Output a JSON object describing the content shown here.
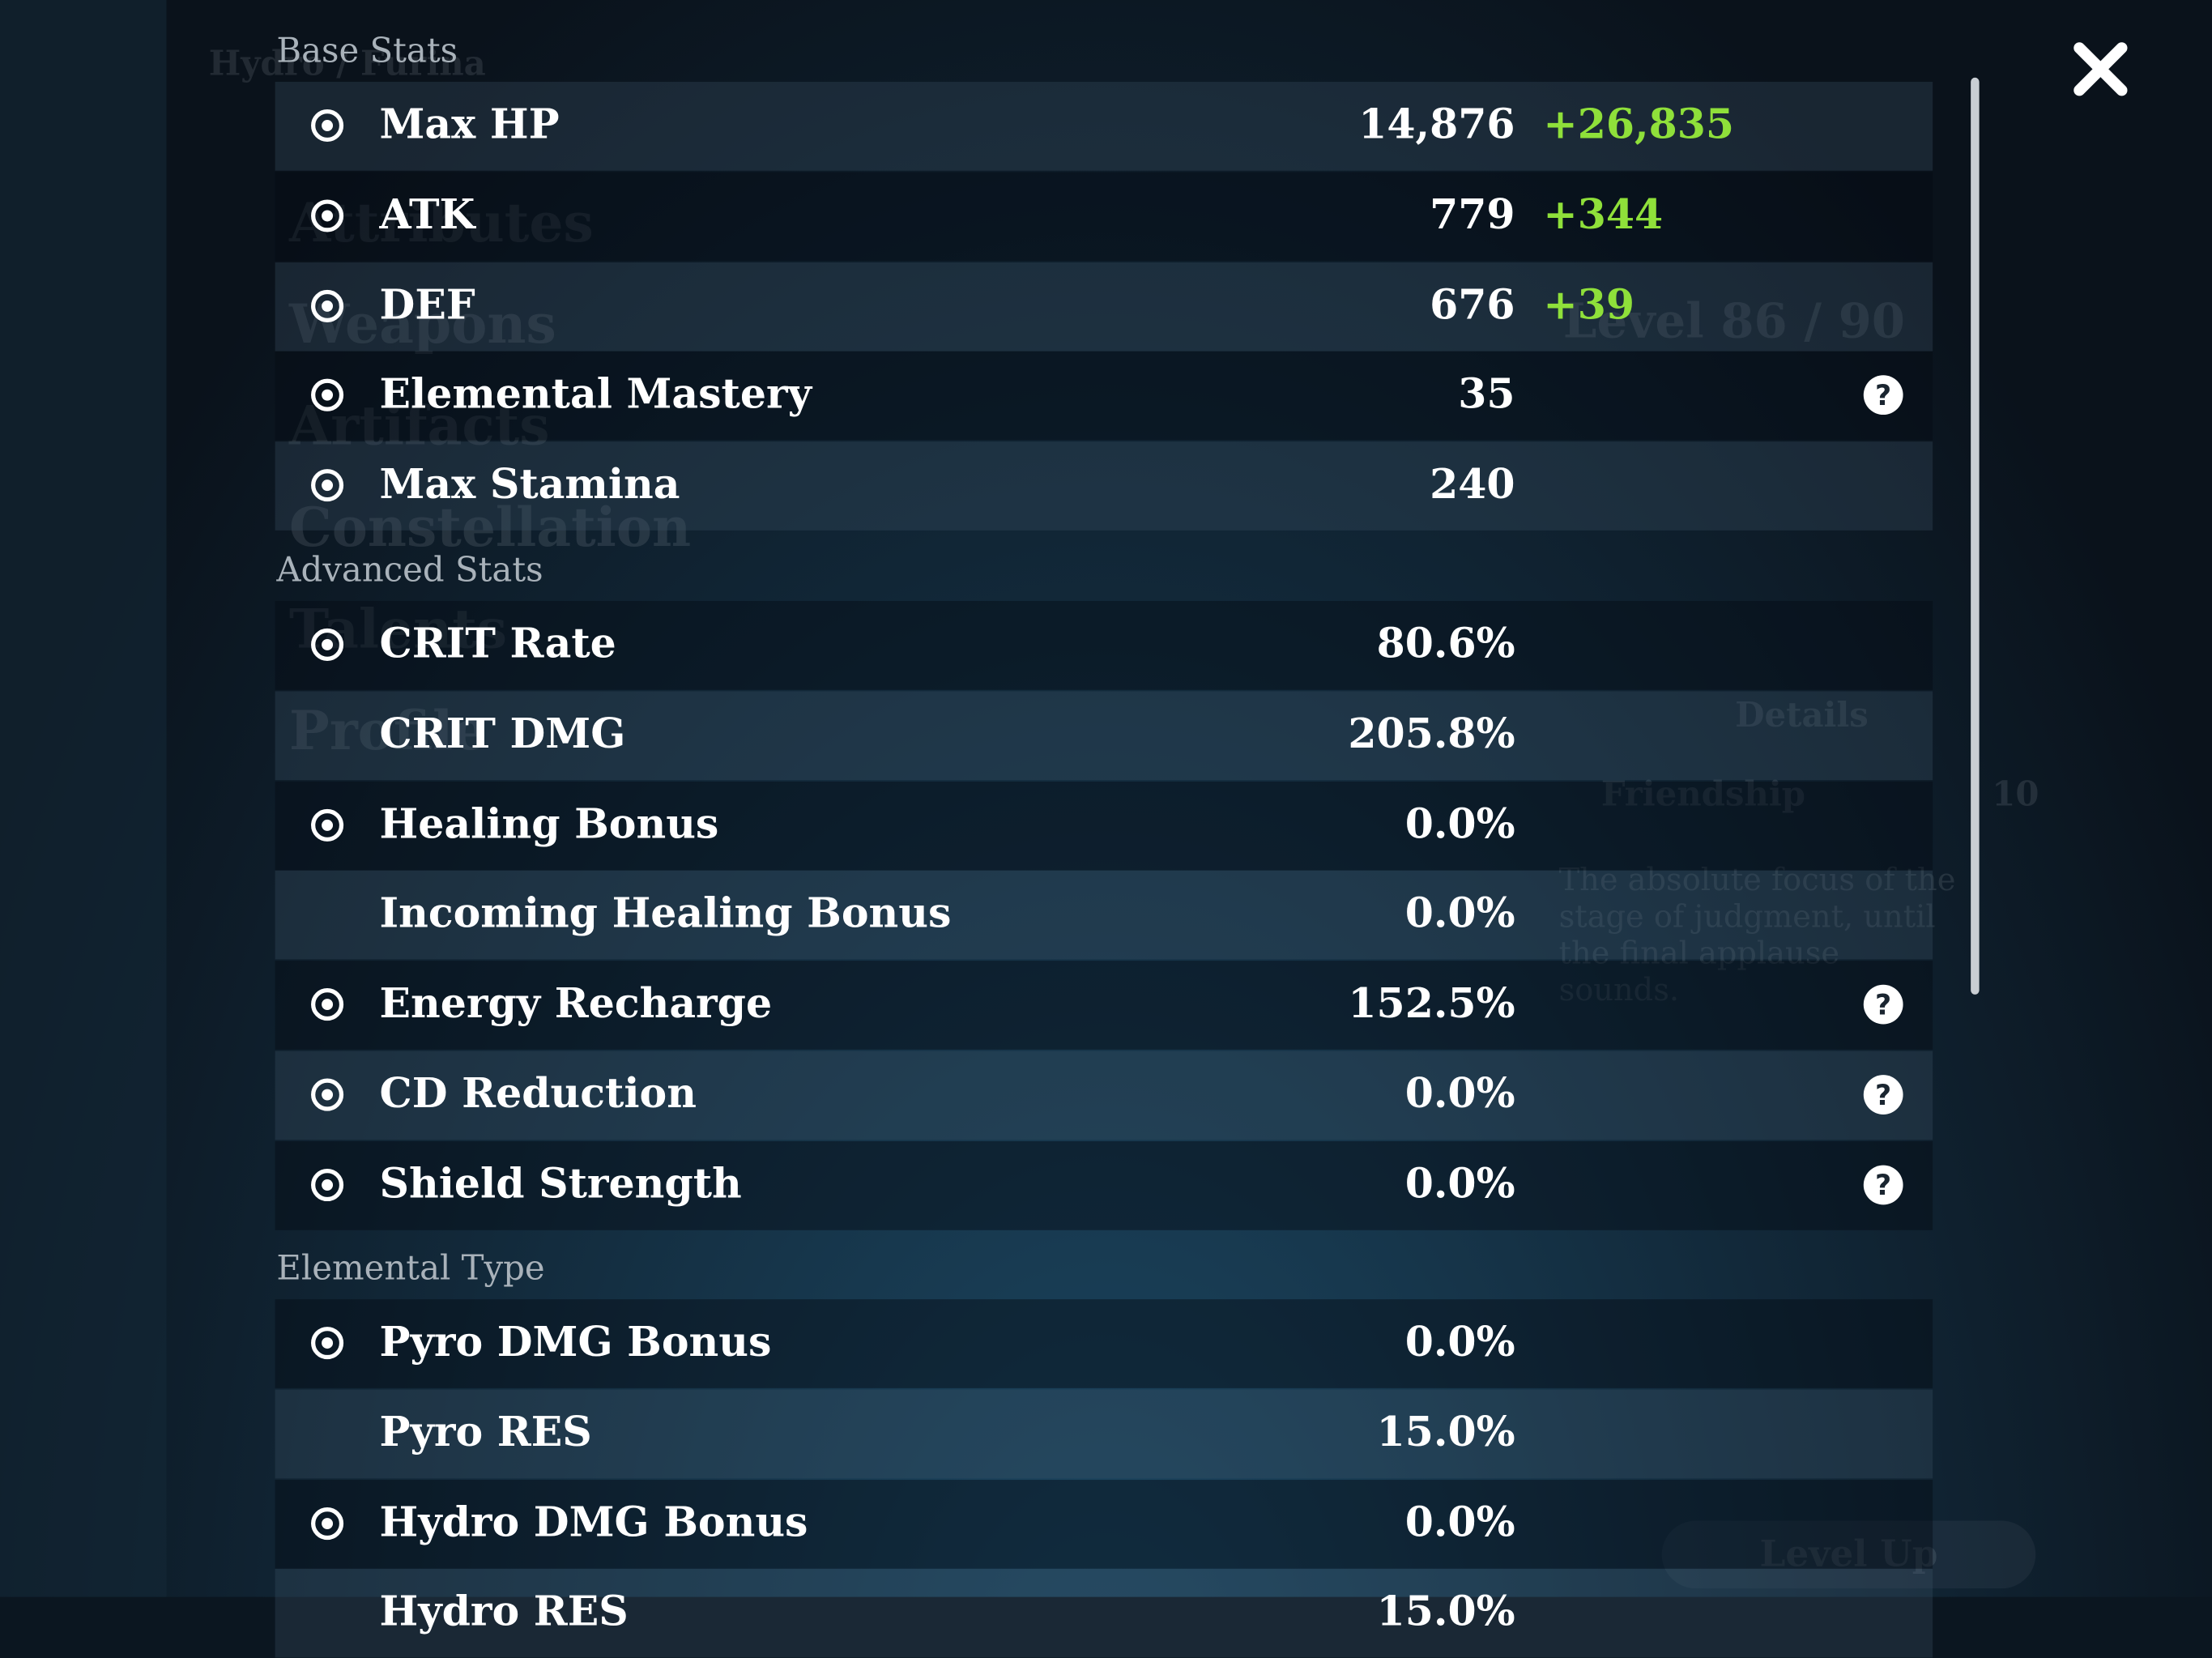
{
  "background": {
    "menu": [
      "Attributes",
      "Weapons",
      "Artifacts",
      "Constellation",
      "Talents",
      "Profile"
    ],
    "character": "Hydro / Furina",
    "level": "Level 86 / 90",
    "details": "Details",
    "friendship": "Friendship",
    "friendship_level": "10",
    "description": "The absolute focus of the stage of judgment, until the final applause sounds.",
    "level_up": "Level Up"
  },
  "sections": [
    {
      "title": "Base Stats",
      "rows": [
        {
          "label": "Max HP",
          "value": "14,876",
          "bonus": "+26,835"
        },
        {
          "label": "ATK",
          "value": "779",
          "bonus": "+344"
        },
        {
          "label": "DEF",
          "value": "676",
          "bonus": "+39"
        },
        {
          "label": "Elemental Mastery",
          "value": "35",
          "help": true
        },
        {
          "label": "Max Stamina",
          "value": "240"
        }
      ]
    },
    {
      "title": "Advanced Stats",
      "rows": [
        {
          "label": "CRIT Rate",
          "value": "80.6%"
        },
        {
          "label": "CRIT DMG",
          "value": "205.8%"
        },
        {
          "label": "Healing Bonus",
          "value": "0.0%"
        },
        {
          "label": "Incoming Healing Bonus",
          "value": "0.0%"
        },
        {
          "label": "Energy Recharge",
          "value": "152.5%",
          "help": true
        },
        {
          "label": "CD Reduction",
          "value": "0.0%",
          "help": true
        },
        {
          "label": "Shield Strength",
          "value": "0.0%",
          "help": true
        }
      ]
    },
    {
      "title": "Elemental Type",
      "rows": [
        {
          "label": "Pyro DMG Bonus",
          "value": "0.0%"
        },
        {
          "label": "Pyro RES",
          "value": "15.0%"
        },
        {
          "label": "Hydro DMG Bonus",
          "value": "0.0%"
        },
        {
          "label": "Hydro RES",
          "value": "15.0%"
        }
      ]
    }
  ]
}
